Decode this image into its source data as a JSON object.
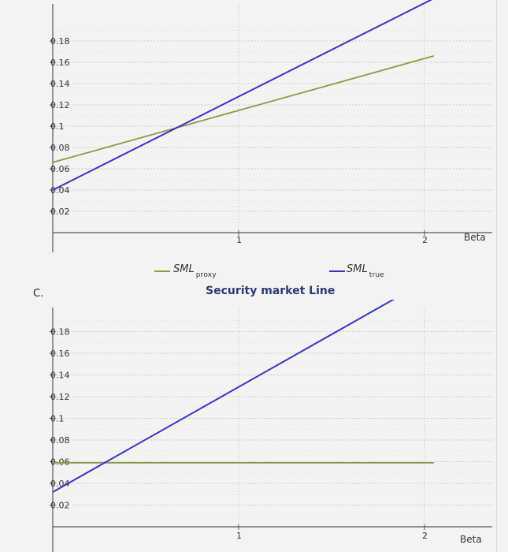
{
  "problem_label": "C.",
  "legend": {
    "proxy": {
      "name": "SML",
      "sub": "proxy",
      "color": "#8a9a4a"
    },
    "true_line": {
      "name": "SML",
      "sub": "true",
      "color": "#3636c8"
    }
  },
  "section_title": "Security market Line",
  "chart_data": [
    {
      "type": "line",
      "title": "",
      "xlabel": "Beta",
      "ylabel": "",
      "xlim": [
        0,
        2.05
      ],
      "ylim": [
        0.0,
        0.2
      ],
      "x_ticks": [
        "1",
        "2"
      ],
      "y_ticks": [
        "0.02",
        "0.04",
        "0.06",
        "0.08",
        "0.1",
        "0.12",
        "0.14",
        "0.16",
        "0.18"
      ],
      "grid": true,
      "series": [
        {
          "name": "SML proxy",
          "color": "#8a9a4a",
          "x": [
            0,
            2.05
          ],
          "y": [
            0.066,
            0.166
          ]
        },
        {
          "name": "SML true",
          "color": "#3636c8",
          "x": [
            0,
            2.05
          ],
          "y": [
            0.04,
            0.22
          ]
        }
      ]
    },
    {
      "type": "line",
      "title": "",
      "xlabel": "Beta",
      "ylabel": "",
      "xlim": [
        0,
        2.05
      ],
      "ylim": [
        0.0,
        0.2
      ],
      "x_ticks": [
        "1",
        "2"
      ],
      "y_ticks": [
        "0.02",
        "0.04",
        "0.06",
        "0.08",
        "0.1",
        "0.12",
        "0.14",
        "0.16",
        "0.18"
      ],
      "grid": true,
      "series": [
        {
          "name": "SML proxy",
          "color": "#8a9a4a",
          "x": [
            0,
            2.05
          ],
          "y": [
            0.059,
            0.059
          ]
        },
        {
          "name": "SML true",
          "color": "#3636c8",
          "x": [
            0,
            1.95
          ],
          "y": [
            0.032,
            0.221
          ]
        }
      ]
    }
  ]
}
